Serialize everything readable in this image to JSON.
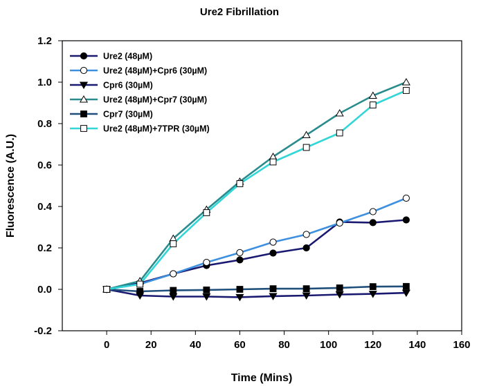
{
  "chart_data": {
    "type": "line",
    "title": "Ure2 Fibrillation",
    "xlabel": "Time (Mins)",
    "ylabel": "Fluorescence (A.U.)",
    "xlim": [
      -20,
      160
    ],
    "ylim": [
      -0.2,
      1.2
    ],
    "x_ticks": [
      "0",
      "20",
      "40",
      "60",
      "80",
      "100",
      "120",
      "140",
      "160"
    ],
    "y_ticks": [
      "-0.2",
      "0.0",
      "0.2",
      "0.4",
      "0.6",
      "0.8",
      "1.0",
      "1.2"
    ],
    "grid": false,
    "legend_position": "top-left",
    "x": [
      0,
      15,
      30,
      45,
      60,
      75,
      90,
      105,
      120,
      135
    ],
    "series": [
      {
        "name": "Ure2 (48µM)",
        "color": "#191970",
        "marker": "circle-filled",
        "values": [
          0.0,
          0.03,
          0.075,
          0.115,
          0.142,
          0.175,
          0.2,
          0.325,
          0.322,
          0.335
        ]
      },
      {
        "name": "Ure2 (48µM)+Cpr6 (30µM)",
        "color": "#3d8fe0",
        "marker": "circle-open",
        "values": [
          0.0,
          0.025,
          0.075,
          0.13,
          0.177,
          0.228,
          0.265,
          0.32,
          0.375,
          0.44
        ]
      },
      {
        "name": "Cpr6 (30µM)",
        "color": "#191970",
        "marker": "triangle-down-filled",
        "values": [
          0.0,
          -0.03,
          -0.035,
          -0.035,
          -0.038,
          -0.033,
          -0.03,
          -0.025,
          -0.022,
          -0.017
        ]
      },
      {
        "name": "Ure2 (48µM)+Cpr7 (30µM)",
        "color": "#2a8c8c",
        "marker": "triangle-up-open",
        "values": [
          0.0,
          0.04,
          0.245,
          0.385,
          0.52,
          0.64,
          0.745,
          0.85,
          0.935,
          1.0
        ]
      },
      {
        "name": "Cpr7 (30µM)",
        "color": "#1f4f7a",
        "marker": "square-filled",
        "values": [
          0.0,
          -0.01,
          -0.005,
          -0.003,
          0.0,
          0.003,
          0.003,
          0.007,
          0.013,
          0.014
        ]
      },
      {
        "name": "Ure2 (48µM)+7TPR (30µM)",
        "color": "#33d6d6",
        "marker": "square-open",
        "values": [
          0.0,
          0.025,
          0.22,
          0.37,
          0.51,
          0.615,
          0.685,
          0.755,
          0.89,
          0.96
        ]
      }
    ]
  }
}
